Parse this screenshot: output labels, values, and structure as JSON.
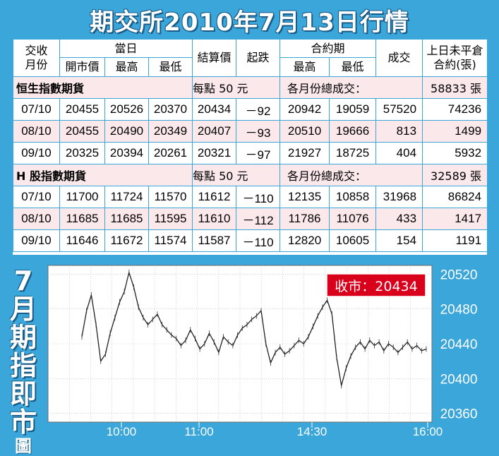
{
  "title": "期交所2010年7月13日行情",
  "table": {
    "headers": {
      "month_top": "交收",
      "month_bottom": "月份",
      "today": "當日",
      "open": "開市價",
      "high": "最高",
      "low": "最低",
      "settle": "結算價",
      "change": "起跌",
      "contract_period": "合約期",
      "cp_high": "最高",
      "cp_low": "最低",
      "volume": "成交",
      "oi_top": "上日未平倉",
      "oi_bottom": "合約(張)"
    },
    "sections": [
      {
        "name": "恒生指數期貨",
        "per_point": "每點 50 元",
        "total_label": "各月份總成交：",
        "total_value": "58833 張",
        "rows": [
          {
            "month": "07/10",
            "open": "20455",
            "high": "20526",
            "low": "20370",
            "settle": "20434",
            "change": "－92",
            "cp_high": "20942",
            "cp_low": "19059",
            "volume": "57520",
            "oi": "74236"
          },
          {
            "month": "08/10",
            "open": "20455",
            "high": "20490",
            "low": "20349",
            "settle": "20407",
            "change": "－93",
            "cp_high": "20510",
            "cp_low": "19666",
            "volume": "813",
            "oi": "1499"
          },
          {
            "month": "09/10",
            "open": "20325",
            "high": "20394",
            "low": "20261",
            "settle": "20321",
            "change": "－97",
            "cp_high": "21927",
            "cp_low": "18725",
            "volume": "404",
            "oi": "5932"
          }
        ]
      },
      {
        "name": "H 股指數期貨",
        "per_point": "每點 50 元",
        "total_label": "各月份總成交：",
        "total_value": "32589 張",
        "rows": [
          {
            "month": "07/10",
            "open": "11700",
            "high": "11724",
            "low": "11570",
            "settle": "11612",
            "change": "－110",
            "cp_high": "12135",
            "cp_low": "10858",
            "volume": "31968",
            "oi": "86824"
          },
          {
            "month": "08/10",
            "open": "11685",
            "high": "11685",
            "low": "11595",
            "settle": "11610",
            "change": "－112",
            "cp_high": "11786",
            "cp_low": "11076",
            "volume": "433",
            "oi": "1417"
          },
          {
            "month": "09/10",
            "open": "11646",
            "high": "11672",
            "low": "11574",
            "settle": "11587",
            "change": "－110",
            "cp_high": "12820",
            "cp_low": "10605",
            "volume": "154",
            "oi": "1191"
          }
        ]
      }
    ]
  },
  "side_label": {
    "top": "7",
    "mid": [
      "月",
      "期",
      "指",
      "即",
      "市"
    ],
    "bottom": "圖"
  },
  "colors": {
    "accent": "#3aa6d9",
    "stripe": "#fbe8ea",
    "close_badge": "#d9001b",
    "line": "#222222"
  },
  "chart_data": {
    "type": "line",
    "title": "",
    "close_label": "收市：20434",
    "x_tick_labels": [
      "10:00",
      "11:00",
      "14:30",
      "16:00"
    ],
    "y_tick_labels": [
      "20520",
      "20480",
      "20440",
      "20400",
      "20360"
    ],
    "yticks": [
      20520,
      20480,
      20440,
      20400,
      20360
    ],
    "ylim": [
      20350,
      20530
    ],
    "x_minutes": [
      0,
      5,
      10,
      15,
      20,
      25,
      30,
      35,
      40,
      45,
      50,
      55,
      60,
      65,
      70,
      75,
      80,
      85,
      90,
      95,
      100,
      105,
      110,
      115,
      120,
      125,
      130,
      135,
      140,
      145,
      150,
      155,
      160,
      165,
      170,
      175,
      180,
      185,
      190,
      195,
      200,
      205,
      210,
      215,
      220,
      225,
      230,
      235,
      240,
      245,
      250,
      255,
      260,
      265,
      270,
      275,
      280,
      285,
      290,
      295,
      300,
      305,
      310,
      315,
      320,
      325,
      330,
      335,
      340,
      345,
      350,
      355,
      360,
      365
    ],
    "values": [
      20448,
      20478,
      20496,
      20462,
      20420,
      20428,
      20452,
      20470,
      20488,
      20500,
      20522,
      20505,
      20482,
      20470,
      20462,
      20468,
      20474,
      20462,
      20456,
      20450,
      20446,
      20438,
      20444,
      20456,
      20446,
      20434,
      20440,
      20452,
      20442,
      20430,
      20448,
      20442,
      20438,
      20450,
      20458,
      20462,
      20468,
      20472,
      20478,
      20440,
      20418,
      20430,
      20436,
      20428,
      20432,
      20438,
      20444,
      20440,
      20448,
      20460,
      20472,
      20482,
      20490,
      20474,
      20424,
      20392,
      20412,
      20426,
      20436,
      20442,
      20434,
      20444,
      20438,
      20442,
      20432,
      20440,
      20436,
      20430,
      20436,
      20442,
      20434,
      20438,
      20432,
      20434
    ],
    "grid": true
  }
}
